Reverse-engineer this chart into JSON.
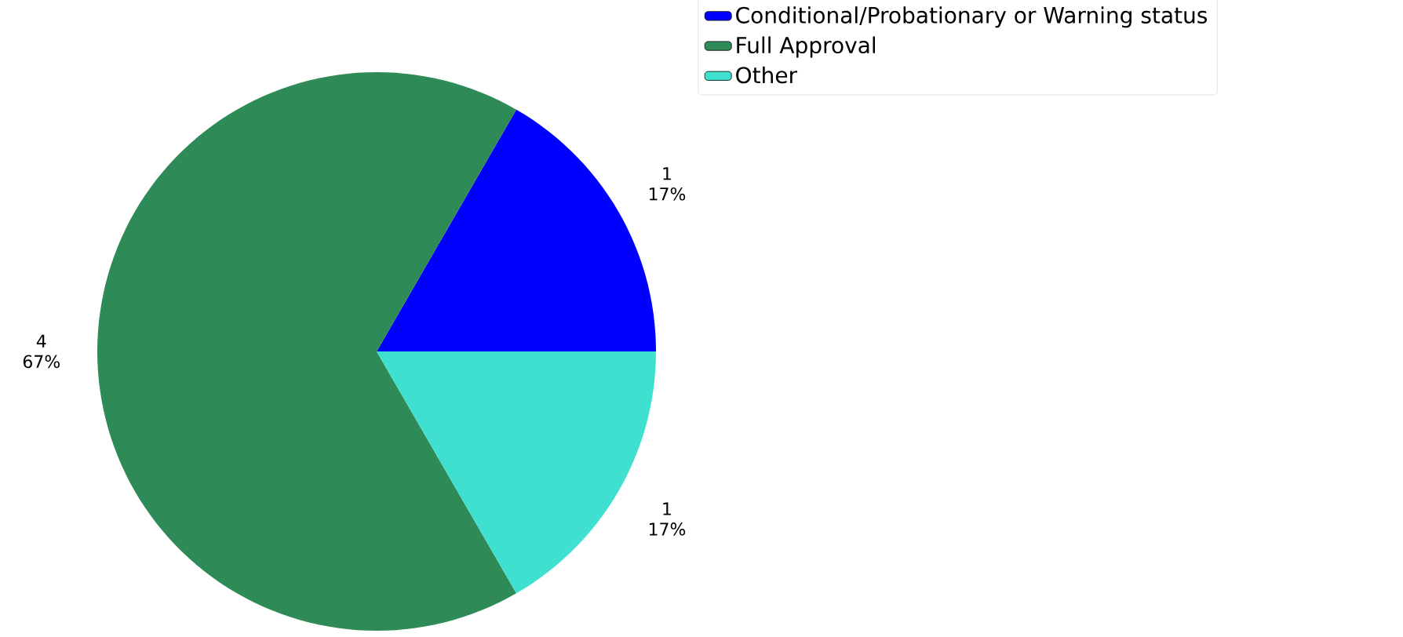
{
  "chart_data": {
    "type": "pie",
    "categories": [
      "Conditional/Probationary or Warning status",
      "Full Approval",
      "Other"
    ],
    "values": [
      1,
      4,
      1
    ],
    "colors": [
      "#0000ff",
      "#2e8b57",
      "#40e0d0"
    ],
    "data_labels": true,
    "annotations": [
      "17%",
      "67%",
      "17%"
    ],
    "legend": "top right"
  }
}
